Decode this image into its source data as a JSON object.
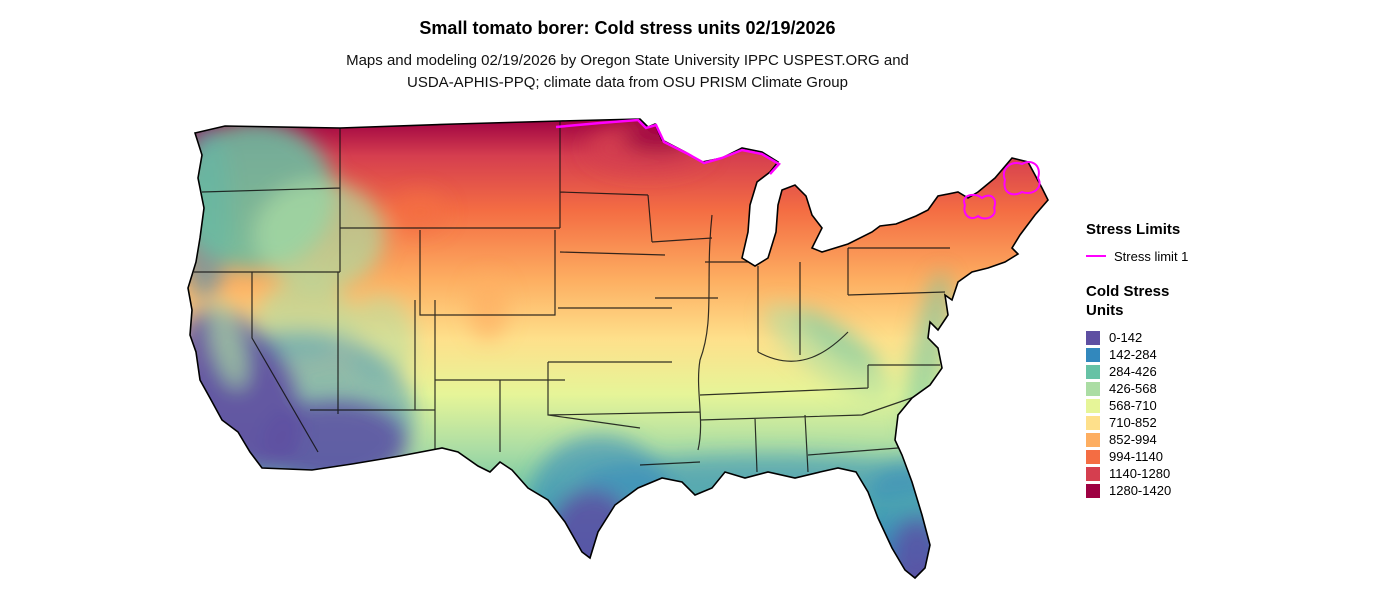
{
  "header": {
    "title": "Small tomato borer: Cold stress units 02/19/2026",
    "subtitle_line1": "Maps and modeling 02/19/2026 by Oregon State University IPPC USPEST.ORG and",
    "subtitle_line2": "USDA-APHIS-PPQ; climate data from OSU PRISM Climate Group"
  },
  "legend": {
    "stress_limits_title": "Stress Limits",
    "stress_limit_items": [
      {
        "label": "Stress limit 1",
        "color": "#FF00FF"
      }
    ],
    "cold_stress_title": "Cold Stress Units",
    "classes": [
      {
        "label": "0-142",
        "color": "#5E4FA2"
      },
      {
        "label": "142-284",
        "color": "#3288BD"
      },
      {
        "label": "284-426",
        "color": "#66C2A5"
      },
      {
        "label": "426-568",
        "color": "#ABDDA4"
      },
      {
        "label": "568-710",
        "color": "#E6F598"
      },
      {
        "label": "710-852",
        "color": "#FEE08B"
      },
      {
        "label": "852-994",
        "color": "#FDAE61"
      },
      {
        "label": "994-1140",
        "color": "#F46D43"
      },
      {
        "label": "1140-1280",
        "color": "#D53E4F"
      },
      {
        "label": "1280-1420",
        "color": "#9E0142"
      }
    ]
  }
}
